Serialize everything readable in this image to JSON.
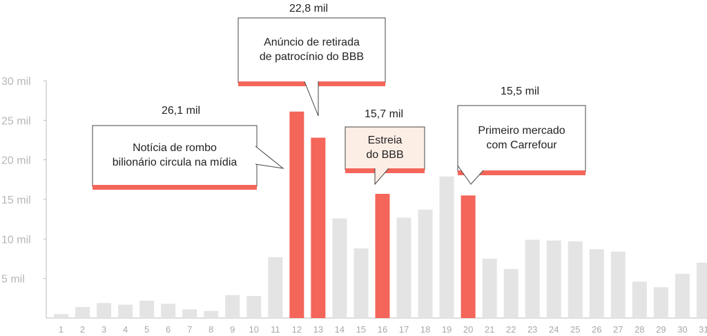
{
  "chart_data": {
    "type": "bar",
    "categories": [
      "1",
      "2",
      "3",
      "4",
      "5",
      "6",
      "7",
      "8",
      "9",
      "10",
      "11",
      "12",
      "13",
      "14",
      "15",
      "16",
      "17",
      "18",
      "19",
      "20",
      "21",
      "22",
      "23",
      "24",
      "25",
      "26",
      "27",
      "28",
      "29",
      "30",
      "31"
    ],
    "values": [
      0.5,
      1.4,
      1.9,
      1.7,
      2.2,
      1.8,
      1.1,
      0.9,
      2.9,
      2.8,
      7.7,
      26.1,
      22.8,
      12.6,
      8.8,
      15.7,
      12.7,
      13.7,
      17.9,
      15.5,
      7.5,
      6.2,
      9.9,
      9.8,
      9.7,
      8.7,
      8.4,
      4.6,
      3.9,
      5.6,
      7.0
    ],
    "value_unit": "mil",
    "ylim": [
      0,
      30
    ],
    "yticks": [
      {
        "value": 5,
        "label": "5 mil"
      },
      {
        "value": 10,
        "label": "10 mil"
      },
      {
        "value": 15,
        "label": "15 mil"
      },
      {
        "value": 20,
        "label": "20 mil"
      },
      {
        "value": 25,
        "label": "25 mil"
      },
      {
        "value": 30,
        "label": "30 mil"
      }
    ],
    "highlighted_categories": [
      "12",
      "13",
      "16",
      "20"
    ],
    "data_labels": [
      {
        "category": "12",
        "text": "26,1 mil"
      },
      {
        "category": "13",
        "text": "22,8 mil"
      },
      {
        "category": "16",
        "text": "15,7 mil"
      },
      {
        "category": "20",
        "text": "15,5 mil"
      }
    ],
    "annotations": [
      {
        "category": "12",
        "lines": [
          "Notícia de rombo",
          "bilionário circula na mídia"
        ]
      },
      {
        "category": "13",
        "lines": [
          "Anúncio de retirada",
          "de patrocínio do BBB"
        ]
      },
      {
        "category": "16",
        "lines": [
          "Estreia",
          "do BBB"
        ]
      },
      {
        "category": "20",
        "lines": [
          "Primeiro mercado",
          "com Carrefour"
        ]
      }
    ],
    "colors": {
      "bar": "#e4e4e4",
      "highlight": "#f4655a",
      "callout_border": "#444444",
      "callout_fill": "#ffffff",
      "callout_fill_alt": "#fdeee5",
      "grid_axis": "#bbbbbb"
    },
    "grid": false,
    "title": "",
    "xlabel": "",
    "ylabel": ""
  }
}
